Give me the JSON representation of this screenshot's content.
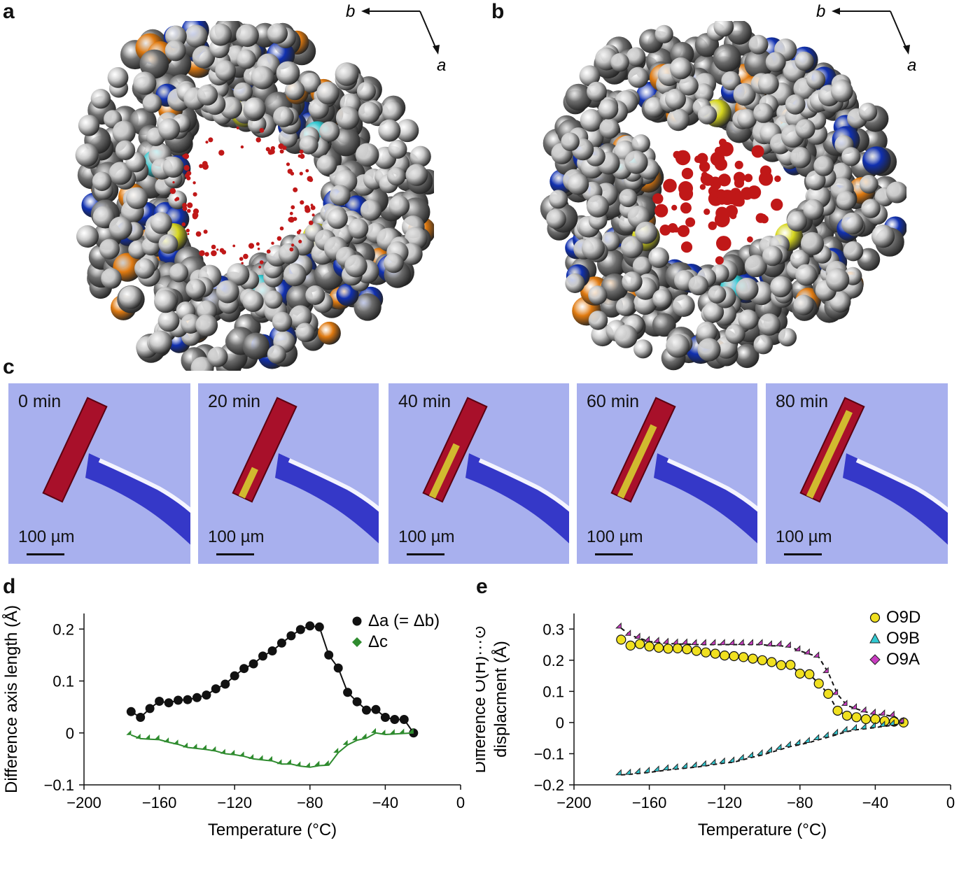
{
  "panels": {
    "a": {
      "letter": "a",
      "axis_b": "b",
      "axis_a": "a"
    },
    "b": {
      "letter": "b",
      "axis_b": "b",
      "axis_a": "a"
    },
    "c": {
      "letter": "c",
      "frames": [
        {
          "time": "0 min",
          "scale": "100 µm",
          "yellow": 0.0
        },
        {
          "time": "20 min",
          "scale": "100 µm",
          "yellow": 0.3
        },
        {
          "time": "40 min",
          "scale": "100 µm",
          "yellow": 0.55
        },
        {
          "time": "60 min",
          "scale": "100 µm",
          "yellow": 0.75
        },
        {
          "time": "80 min",
          "scale": "100 µm",
          "yellow": 0.9
        }
      ]
    },
    "d": {
      "letter": "d"
    },
    "e": {
      "letter": "e"
    }
  },
  "colors": {
    "carbon": "#6e6e6e",
    "hydrogen": "#c8c8c8",
    "nitrogen": "#1030b0",
    "oxygen": "#e07a10",
    "sulfur": "#d8d820",
    "cyan": "#30c8d0",
    "guest": "#c01818",
    "photo_bg": "#a8b0ee"
  },
  "chart_data": [
    {
      "type": "scatter",
      "panel": "d",
      "xlabel": "Temperature (°C)",
      "ylabel": "Difference axis length (Å)",
      "xlim": [
        -200,
        0
      ],
      "ylim": [
        -0.1,
        0.23
      ],
      "xticks": [
        "−200",
        "−160",
        "−120",
        "−80",
        "−40",
        "0"
      ],
      "xtick_values": [
        -200,
        -160,
        -120,
        -80,
        -40,
        0
      ],
      "yticks": [
        "−0.1",
        "0",
        "0.1",
        "0.2"
      ],
      "ytick_values": [
        -0.1,
        0,
        0.1,
        0.2
      ],
      "legend_position": "top-right",
      "series": [
        {
          "name": "Δa (= Δb)",
          "color": "#111111",
          "marker": "circle",
          "x": [
            -175,
            -170,
            -165,
            -160,
            -155,
            -150,
            -145,
            -140,
            -135,
            -130,
            -125,
            -120,
            -115,
            -110,
            -105,
            -100,
            -95,
            -90,
            -85,
            -80,
            -75,
            -70,
            -65,
            -60,
            -55,
            -50,
            -45,
            -40,
            -35,
            -30,
            -25
          ],
          "y": [
            0.041,
            0.03,
            0.047,
            0.061,
            0.058,
            0.063,
            0.064,
            0.068,
            0.073,
            0.085,
            0.094,
            0.11,
            0.124,
            0.133,
            0.148,
            0.158,
            0.173,
            0.187,
            0.199,
            0.206,
            0.204,
            0.15,
            0.125,
            0.078,
            0.06,
            0.044,
            0.045,
            0.03,
            0.026,
            0.026,
            0.0
          ]
        },
        {
          "name": "Δc",
          "color": "#2e8b2e",
          "marker": "diamond",
          "x": [
            -175,
            -170,
            -165,
            -160,
            -155,
            -150,
            -145,
            -140,
            -135,
            -130,
            -125,
            -120,
            -115,
            -110,
            -105,
            -100,
            -95,
            -90,
            -85,
            -80,
            -75,
            -70,
            -65,
            -60,
            -55,
            -50,
            -45,
            -40,
            -35,
            -30,
            -25
          ],
          "y": [
            -0.004,
            -0.011,
            -0.012,
            -0.013,
            -0.018,
            -0.022,
            -0.028,
            -0.03,
            -0.032,
            -0.035,
            -0.04,
            -0.042,
            -0.045,
            -0.05,
            -0.052,
            -0.054,
            -0.06,
            -0.06,
            -0.064,
            -0.066,
            -0.063,
            -0.062,
            -0.038,
            -0.023,
            -0.014,
            -0.01,
            0.0,
            -0.003,
            -0.002,
            -0.001,
            0.0
          ]
        }
      ]
    },
    {
      "type": "scatter",
      "panel": "e",
      "xlabel": "Temperature (°C)",
      "ylabel": "Difference O(H)···⊙ displacment (Å)",
      "ylabel_lines": [
        "Difference O(H)···⊙",
        "displacment (Å)"
      ],
      "xlim": [
        -200,
        0
      ],
      "ylim": [
        -0.2,
        0.35
      ],
      "xticks": [
        "−200",
        "−160",
        "−120",
        "−80",
        "−40",
        "0"
      ],
      "xtick_values": [
        -200,
        -160,
        -120,
        -80,
        -40,
        0
      ],
      "yticks": [
        "−0.2",
        "−0.1",
        "0",
        "0.1",
        "0.2",
        "0.3"
      ],
      "ytick_values": [
        -0.2,
        -0.1,
        0,
        0.1,
        0.2,
        0.3
      ],
      "legend_position": "top-right",
      "series": [
        {
          "name": "O9D",
          "color": "#f0e020",
          "marker": "circle",
          "x": [
            -175,
            -170,
            -165,
            -160,
            -155,
            -150,
            -145,
            -140,
            -135,
            -130,
            -125,
            -120,
            -115,
            -110,
            -105,
            -100,
            -95,
            -90,
            -85,
            -80,
            -75,
            -70,
            -65,
            -60,
            -55,
            -50,
            -45,
            -40,
            -35,
            -30,
            -25
          ],
          "y": [
            0.266,
            0.247,
            0.252,
            0.244,
            0.24,
            0.237,
            0.238,
            0.235,
            0.23,
            0.225,
            0.221,
            0.215,
            0.213,
            0.21,
            0.205,
            0.2,
            0.194,
            0.184,
            0.185,
            0.157,
            0.155,
            0.125,
            0.092,
            0.038,
            0.022,
            0.017,
            0.011,
            0.011,
            0.005,
            0.003,
            0.0
          ]
        },
        {
          "name": "O9B",
          "color": "#30c8d0",
          "marker": "triangle",
          "x": [
            -175,
            -170,
            -165,
            -160,
            -155,
            -150,
            -145,
            -140,
            -135,
            -130,
            -125,
            -120,
            -115,
            -110,
            -105,
            -100,
            -95,
            -90,
            -85,
            -80,
            -75,
            -70,
            -65,
            -60,
            -55,
            -50,
            -45,
            -40,
            -35,
            -30,
            -25
          ],
          "y": [
            -0.168,
            -0.166,
            -0.163,
            -0.16,
            -0.156,
            -0.152,
            -0.149,
            -0.146,
            -0.143,
            -0.139,
            -0.134,
            -0.13,
            -0.127,
            -0.119,
            -0.111,
            -0.104,
            -0.095,
            -0.086,
            -0.077,
            -0.071,
            -0.064,
            -0.055,
            -0.047,
            -0.038,
            -0.029,
            -0.023,
            -0.02,
            -0.016,
            -0.012,
            -0.008,
            -0.001
          ]
        },
        {
          "name": "O9A",
          "color": "#c83cc0",
          "marker": "diamond",
          "x": [
            -175,
            -170,
            -165,
            -160,
            -155,
            -150,
            -145,
            -140,
            -135,
            -130,
            -125,
            -120,
            -115,
            -110,
            -105,
            -100,
            -95,
            -90,
            -85,
            -80,
            -75,
            -70,
            -65,
            -60,
            -55,
            -50,
            -45,
            -40,
            -35,
            -30,
            -25
          ],
          "y": [
            0.303,
            0.28,
            0.27,
            0.26,
            0.257,
            0.254,
            0.252,
            0.252,
            0.25,
            0.25,
            0.25,
            0.25,
            0.25,
            0.25,
            0.25,
            0.25,
            0.246,
            0.246,
            0.242,
            0.23,
            0.22,
            0.21,
            0.16,
            0.09,
            0.055,
            0.044,
            0.034,
            0.027,
            0.024,
            0.02,
            0.0
          ]
        }
      ]
    }
  ]
}
